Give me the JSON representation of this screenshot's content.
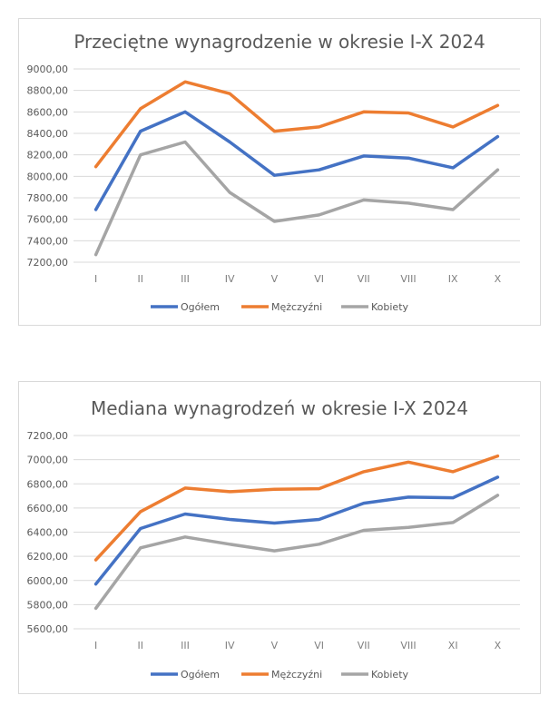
{
  "colors": {
    "ogolem": "#4472c4",
    "mezczyzni": "#ed7d31",
    "kobiety": "#a5a5a5"
  },
  "chart_data": [
    {
      "type": "line",
      "title": "Przeciętne wynagrodzenie w okresie I-X 2024",
      "categories": [
        "I",
        "II",
        "III",
        "IV",
        "V",
        "VI",
        "VII",
        "VIII",
        "IX",
        "X"
      ],
      "yticks": [
        "9000,00",
        "8800,00",
        "8600,00",
        "8400,00",
        "8200,00",
        "8000,00",
        "7800,00",
        "7600,00",
        "7400,00",
        "7200,00"
      ],
      "ylim": [
        7200,
        9000
      ],
      "ystep": 200,
      "grid": true,
      "legend_position": "bottom",
      "series": [
        {
          "name": "Ogółem",
          "color": "#4472c4",
          "values": [
            7690,
            8420,
            8600,
            8320,
            8010,
            8060,
            8190,
            8170,
            8080,
            8370
          ]
        },
        {
          "name": "Mężczyźni",
          "color": "#ed7d31",
          "values": [
            8090,
            8630,
            8880,
            8770,
            8420,
            8460,
            8600,
            8590,
            8460,
            8660
          ]
        },
        {
          "name": "Kobiety",
          "color": "#a5a5a5",
          "values": [
            7270,
            8200,
            8320,
            7850,
            7580,
            7640,
            7780,
            7750,
            7690,
            8060
          ]
        }
      ]
    },
    {
      "type": "line",
      "title": "Mediana wynagrodzeń w okresie I-X 2024",
      "categories": [
        "I",
        "II",
        "III",
        "IV",
        "V",
        "VI",
        "VII",
        "VIII",
        "XI",
        "X"
      ],
      "yticks": [
        "7200,00",
        "7000,00",
        "6800,00",
        "6600,00",
        "6400,00",
        "6200,00",
        "6000,00",
        "5800,00",
        "5600,00"
      ],
      "ylim": [
        5600,
        7200
      ],
      "ystep": 200,
      "grid": true,
      "legend_position": "bottom",
      "series": [
        {
          "name": "Ogółem",
          "color": "#4472c4",
          "values": [
            5970,
            6430,
            6550,
            6505,
            6475,
            6505,
            6640,
            6690,
            6685,
            6855
          ]
        },
        {
          "name": "Mężczyźni",
          "color": "#ed7d31",
          "values": [
            6170,
            6570,
            6765,
            6735,
            6755,
            6760,
            6900,
            6980,
            6900,
            7030
          ]
        },
        {
          "name": "Kobiety",
          "color": "#a5a5a5",
          "values": [
            5770,
            6270,
            6360,
            6300,
            6245,
            6300,
            6415,
            6440,
            6480,
            6705
          ]
        }
      ]
    }
  ]
}
